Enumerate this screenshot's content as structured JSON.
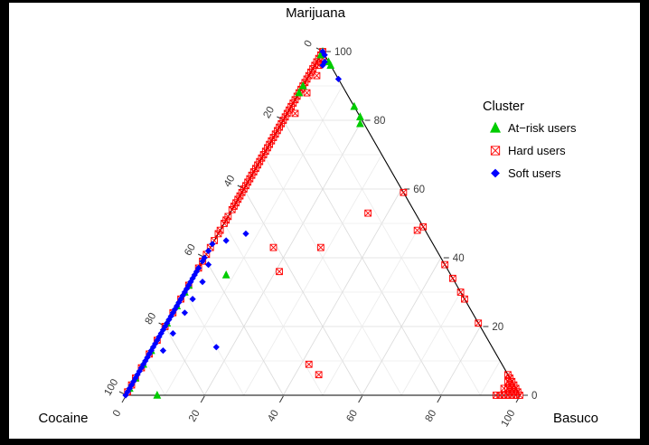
{
  "frame": {
    "background": "#000000",
    "plot_background": "#ffffff"
  },
  "chart_data": {
    "type": "scatter",
    "subtype": "ternary",
    "title": "",
    "axes": {
      "top": "Marijuana",
      "left": "Cocaine",
      "right": "Basuco",
      "range": [
        0,
        100
      ],
      "tick_values": [
        0,
        20,
        40,
        60,
        80,
        100
      ],
      "minor_step": 10,
      "grid": "on"
    },
    "legend": {
      "title": "Cluster",
      "position": "right",
      "entries": [
        {
          "label": "At−risk users",
          "marker": "triangle",
          "color": "#00cc00"
        },
        {
          "label": "Hard users",
          "marker": "crossed-square",
          "color": "#ff0000"
        },
        {
          "label": "Soft users",
          "marker": "diamond",
          "color": "#0000ff"
        }
      ]
    },
    "series": [
      {
        "name": "Hard users",
        "marker": "crossed-square",
        "color": "#ff0000",
        "points": [
          [
            100,
            0,
            0
          ],
          [
            99,
            1,
            0
          ],
          [
            98,
            2,
            0
          ],
          [
            98,
            1,
            1
          ],
          [
            97,
            3,
            0
          ],
          [
            96,
            4,
            0
          ],
          [
            96,
            3,
            1
          ],
          [
            95,
            5,
            0
          ],
          [
            94,
            6,
            0
          ],
          [
            93,
            7,
            0
          ],
          [
            93,
            5,
            2
          ],
          [
            92,
            8,
            0
          ],
          [
            91,
            9,
            0
          ],
          [
            90,
            10,
            0
          ],
          [
            89,
            11,
            0
          ],
          [
            88,
            12,
            0
          ],
          [
            88,
            10,
            2
          ],
          [
            87,
            13,
            0
          ],
          [
            86,
            14,
            0
          ],
          [
            85,
            15,
            0
          ],
          [
            84,
            16,
            0
          ],
          [
            83,
            17,
            0
          ],
          [
            82,
            18,
            0
          ],
          [
            82,
            16,
            2
          ],
          [
            81,
            19,
            0
          ],
          [
            80,
            20,
            0
          ],
          [
            79,
            21,
            0
          ],
          [
            78,
            22,
            0
          ],
          [
            77,
            23,
            0
          ],
          [
            76,
            24,
            0
          ],
          [
            75,
            25,
            0
          ],
          [
            74,
            26,
            0
          ],
          [
            73,
            27,
            0
          ],
          [
            72,
            28,
            0
          ],
          [
            71,
            29,
            0
          ],
          [
            70,
            30,
            0
          ],
          [
            69,
            31,
            0
          ],
          [
            68,
            32,
            0
          ],
          [
            67,
            33,
            0
          ],
          [
            66,
            34,
            0
          ],
          [
            65,
            35,
            0
          ],
          [
            64,
            36,
            0
          ],
          [
            63,
            37,
            0
          ],
          [
            62,
            38,
            0
          ],
          [
            61,
            39,
            0
          ],
          [
            60,
            40,
            0
          ],
          [
            59,
            41,
            0
          ],
          [
            58,
            42,
            0
          ],
          [
            57,
            43,
            0
          ],
          [
            56,
            44,
            0
          ],
          [
            55,
            45,
            0
          ],
          [
            54,
            46,
            0
          ],
          [
            52,
            48,
            0
          ],
          [
            51,
            49,
            0
          ],
          [
            50,
            50,
            0
          ],
          [
            48,
            52,
            0
          ],
          [
            47,
            53,
            0
          ],
          [
            45,
            55,
            0
          ],
          [
            43,
            57,
            0
          ],
          [
            41,
            59,
            0
          ],
          [
            39,
            61,
            0
          ],
          [
            37,
            63,
            0
          ],
          [
            32,
            68,
            0
          ],
          [
            28,
            72,
            0
          ],
          [
            24,
            76,
            0
          ],
          [
            20,
            80,
            0
          ],
          [
            16,
            84,
            0
          ],
          [
            12,
            88,
            0
          ],
          [
            8,
            92,
            0
          ],
          [
            5,
            95,
            0
          ],
          [
            3,
            97,
            0
          ],
          [
            1,
            99,
            0
          ],
          [
            59,
            0,
            41
          ],
          [
            49,
            0,
            51
          ],
          [
            48,
            2,
            50
          ],
          [
            38,
            0,
            62
          ],
          [
            34,
            0,
            66
          ],
          [
            30,
            0,
            70
          ],
          [
            28,
            0,
            72
          ],
          [
            21,
            0,
            79
          ],
          [
            53,
            12,
            35
          ],
          [
            43,
            29,
            28
          ],
          [
            43,
            41,
            16
          ],
          [
            36,
            43,
            21
          ],
          [
            9,
            49,
            42
          ],
          [
            6,
            48,
            46
          ],
          [
            0,
            0,
            100
          ],
          [
            1,
            0,
            99
          ],
          [
            0,
            1,
            99
          ],
          [
            2,
            0,
            98
          ],
          [
            1,
            1,
            98
          ],
          [
            0,
            2,
            98
          ],
          [
            3,
            0,
            97
          ],
          [
            2,
            1,
            97
          ],
          [
            1,
            2,
            97
          ],
          [
            0,
            3,
            97
          ],
          [
            4,
            0,
            96
          ],
          [
            3,
            1,
            96
          ],
          [
            2,
            2,
            96
          ],
          [
            0,
            4,
            96
          ],
          [
            5,
            0,
            95
          ],
          [
            4,
            1,
            95
          ],
          [
            0,
            5,
            95
          ],
          [
            2,
            3,
            95
          ],
          [
            6,
            0,
            94
          ],
          [
            0,
            6,
            94
          ]
        ]
      },
      {
        "name": "At-risk users",
        "marker": "triangle",
        "color": "#00cc00",
        "points": [
          [
            100,
            0,
            0
          ],
          [
            99,
            1,
            0
          ],
          [
            97,
            0,
            3
          ],
          [
            96,
            0,
            4
          ],
          [
            90,
            10,
            0
          ],
          [
            88,
            12,
            0
          ],
          [
            84,
            0,
            16
          ],
          [
            81,
            0,
            19
          ],
          [
            79,
            1,
            20
          ],
          [
            35,
            57,
            8
          ],
          [
            32,
            68,
            0
          ],
          [
            30,
            70,
            0
          ],
          [
            26,
            74,
            0
          ],
          [
            21,
            79,
            0
          ],
          [
            13,
            87,
            0
          ],
          [
            9,
            91,
            0
          ],
          [
            5,
            95,
            0
          ],
          [
            2,
            98,
            0
          ],
          [
            0,
            92,
            8
          ]
        ]
      },
      {
        "name": "Soft users",
        "marker": "diamond",
        "color": "#0000ff",
        "points": [
          [
            100,
            0,
            0
          ],
          [
            99,
            0,
            1
          ],
          [
            97,
            1,
            2
          ],
          [
            96,
            2,
            2
          ],
          [
            92,
            0,
            8
          ],
          [
            47,
            46,
            7
          ],
          [
            45,
            52,
            3
          ],
          [
            44,
            56,
            0
          ],
          [
            42,
            58,
            0
          ],
          [
            40,
            60,
            0
          ],
          [
            39,
            61,
            0
          ],
          [
            38,
            60,
            2
          ],
          [
            37,
            63,
            0
          ],
          [
            36,
            64,
            0
          ],
          [
            35,
            65,
            0
          ],
          [
            34,
            66,
            0
          ],
          [
            33,
            67,
            0
          ],
          [
            33,
            64,
            3
          ],
          [
            32,
            68,
            0
          ],
          [
            31,
            69,
            0
          ],
          [
            30,
            70,
            0
          ],
          [
            29,
            71,
            0
          ],
          [
            28,
            72,
            0
          ],
          [
            28,
            69,
            3
          ],
          [
            27,
            73,
            0
          ],
          [
            26,
            74,
            0
          ],
          [
            25,
            75,
            0
          ],
          [
            24,
            76,
            0
          ],
          [
            24,
            73,
            3
          ],
          [
            23,
            77,
            0
          ],
          [
            22,
            78,
            0
          ],
          [
            21,
            79,
            0
          ],
          [
            20,
            80,
            0
          ],
          [
            19,
            81,
            0
          ],
          [
            18,
            82,
            0
          ],
          [
            18,
            79,
            3
          ],
          [
            17,
            83,
            0
          ],
          [
            16,
            84,
            0
          ],
          [
            15,
            85,
            0
          ],
          [
            14,
            86,
            0
          ],
          [
            14,
            70,
            16
          ],
          [
            13,
            87,
            0
          ],
          [
            13,
            84,
            3
          ],
          [
            12,
            88,
            0
          ],
          [
            11,
            89,
            0
          ],
          [
            10,
            90,
            0
          ],
          [
            9,
            91,
            0
          ],
          [
            8,
            92,
            0
          ],
          [
            7,
            93,
            0
          ],
          [
            6,
            94,
            0
          ],
          [
            5,
            95,
            0
          ],
          [
            4,
            96,
            0
          ],
          [
            3,
            97,
            0
          ],
          [
            2,
            98,
            0
          ],
          [
            1,
            99,
            0
          ],
          [
            0,
            100,
            0
          ]
        ]
      }
    ]
  }
}
